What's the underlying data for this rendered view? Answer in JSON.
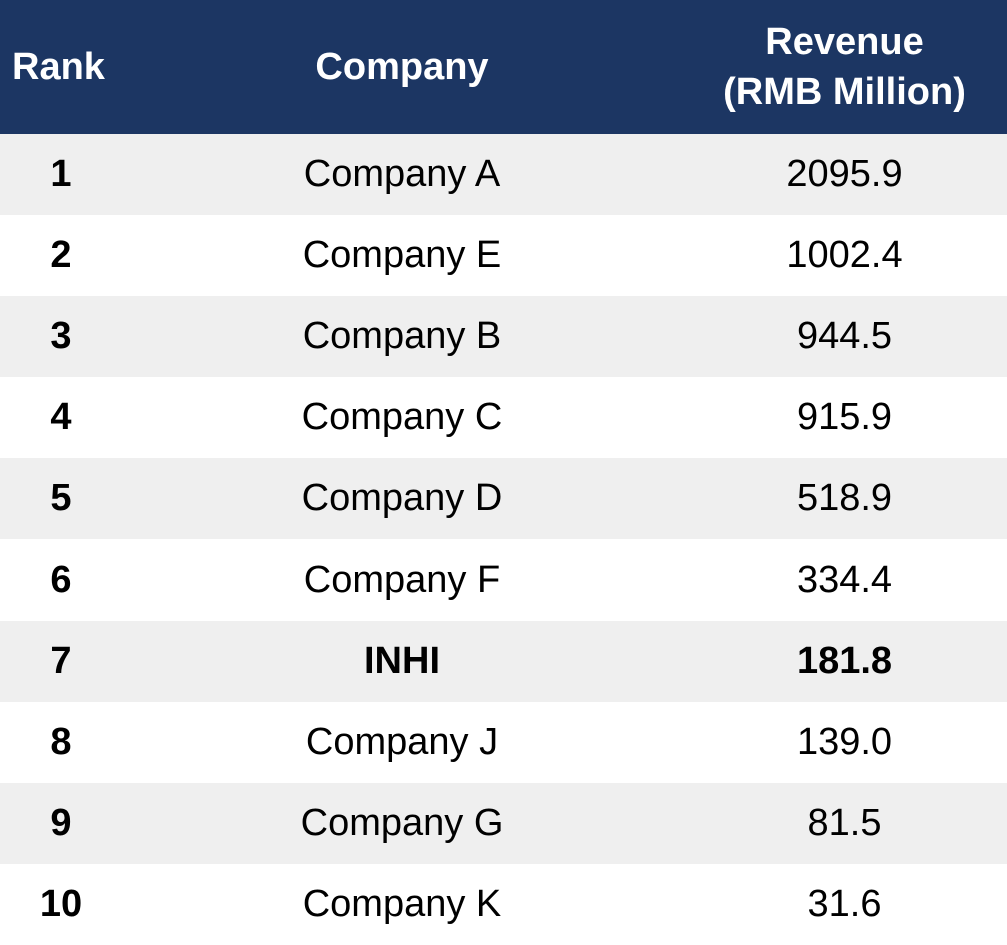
{
  "chart_data": {
    "type": "table",
    "columns": [
      "Rank",
      "Company",
      "Revenue",
      "(RMB Million)"
    ],
    "rows": [
      {
        "rank": "1",
        "company": "Company A",
        "revenue": "2095.9"
      },
      {
        "rank": "2",
        "company": "Company E",
        "revenue": "1002.4"
      },
      {
        "rank": "3",
        "company": "Company B",
        "revenue": "944.5"
      },
      {
        "rank": "4",
        "company": "Company C",
        "revenue": "915.9"
      },
      {
        "rank": "5",
        "company": "Company D",
        "revenue": "518.9"
      },
      {
        "rank": "6",
        "company": "Company F",
        "revenue": "334.4"
      },
      {
        "rank": "7",
        "company": "INHI",
        "revenue": "181.8",
        "highlight": true
      },
      {
        "rank": "8",
        "company": "Company J",
        "revenue": "139.0"
      },
      {
        "rank": "9",
        "company": "Company G",
        "revenue": "81.5"
      },
      {
        "rank": "10",
        "company": "Company K",
        "revenue": "31.6"
      }
    ]
  },
  "colors": {
    "header_bg": "#1c3663",
    "header_text": "#ffffff",
    "stripe": "#efefef"
  }
}
